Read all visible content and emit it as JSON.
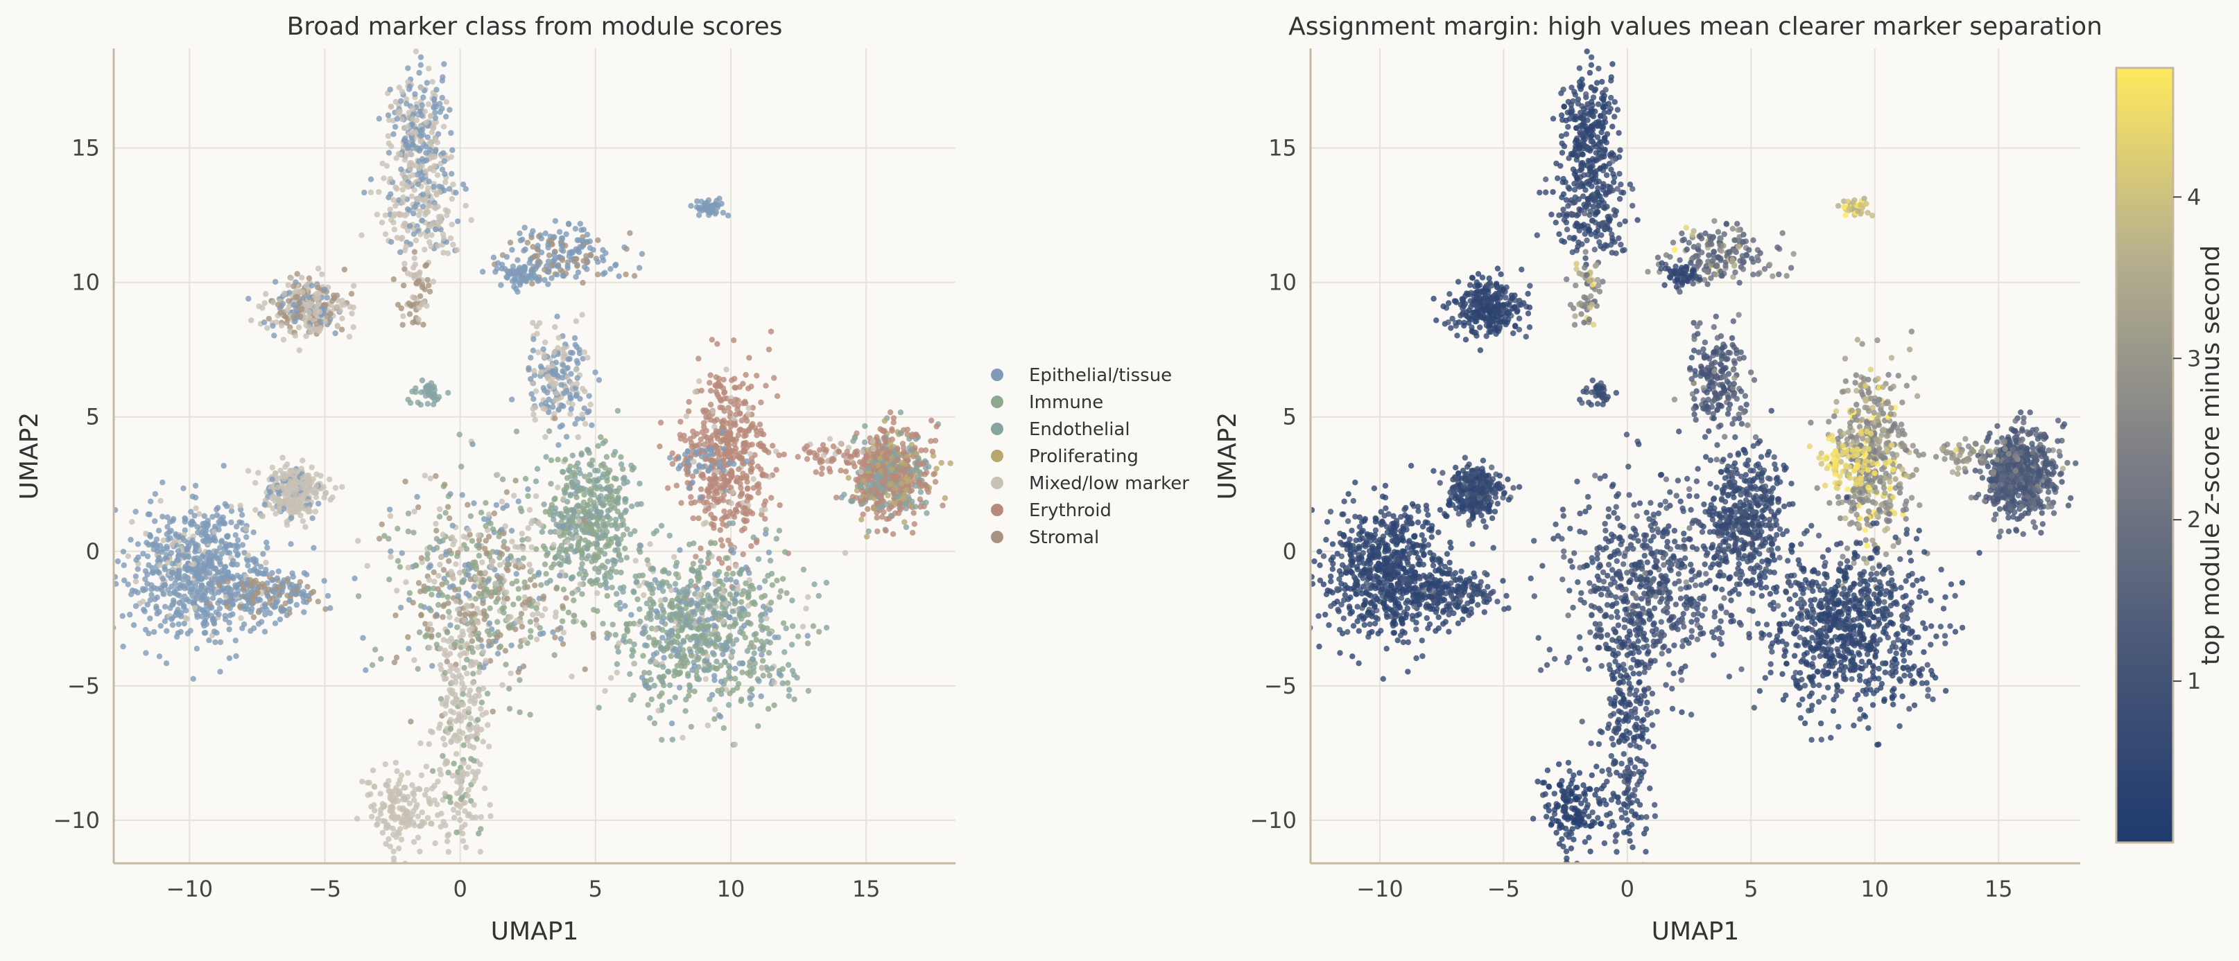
{
  "chart_data": [
    {
      "type": "scatter",
      "title": "Broad marker class from module scores",
      "xlabel": "UMAP1",
      "ylabel": "UMAP2",
      "xlim": [
        -12.8,
        18.3
      ],
      "ylim": [
        -11.6,
        18.7
      ],
      "xticks": [
        -10,
        -5,
        0,
        5,
        10,
        15
      ],
      "yticks": [
        -10,
        -5,
        0,
        5,
        10,
        15
      ],
      "xtick_labels": [
        "−10",
        "−5",
        "0",
        "5",
        "10",
        "15"
      ],
      "ytick_labels": [
        "−10",
        "−5",
        "0",
        "5",
        "10",
        "15"
      ],
      "grid": true,
      "legend_position": "right",
      "legend": [
        {
          "label": "Epithelial/tissue",
          "color": "#7f9bb8"
        },
        {
          "label": "Immune",
          "color": "#8fa88c"
        },
        {
          "label": "Endothelial",
          "color": "#86a4a2"
        },
        {
          "label": "Proliferating",
          "color": "#b8a870"
        },
        {
          "label": "Mixed/low marker",
          "color": "#c8c1b5"
        },
        {
          "label": "Erythroid",
          "color": "#b88a7a"
        },
        {
          "label": "Stromal",
          "color": "#a89480"
        }
      ],
      "clusters": [
        {
          "x": -9.6,
          "y": -0.8,
          "sx": 1.3,
          "sy": 1.2,
          "n": 700,
          "mix": [
            [
              "Epithelial/tissue",
              0.9
            ],
            [
              "Mixed/low marker",
              0.1
            ]
          ],
          "margin": [
            0.3,
            0.4
          ]
        },
        {
          "x": -6.2,
          "y": 2.2,
          "sx": 0.6,
          "sy": 0.5,
          "n": 300,
          "mix": [
            [
              "Mixed/low marker",
              0.85
            ],
            [
              "Epithelial/tissue",
              0.15
            ]
          ],
          "margin": [
            0.3,
            0.6
          ]
        },
        {
          "x": -5.6,
          "y": 9.1,
          "sx": 0.7,
          "sy": 0.5,
          "n": 300,
          "mix": [
            [
              "Mixed/low marker",
              0.5
            ],
            [
              "Stromal",
              0.3
            ],
            [
              "Epithelial/tissue",
              0.2
            ]
          ],
          "margin": [
            0.3,
            0.4
          ]
        },
        {
          "x": -1.6,
          "y": 15.5,
          "sx": 0.5,
          "sy": 1.2,
          "n": 260,
          "mix": [
            [
              "Epithelial/tissue",
              0.5
            ],
            [
              "Mixed/low marker",
              0.5
            ]
          ],
          "margin": [
            0.3,
            0.5
          ]
        },
        {
          "x": -1.3,
          "y": 12.6,
          "sx": 0.8,
          "sy": 0.9,
          "n": 200,
          "mix": [
            [
              "Mixed/low marker",
              0.7
            ],
            [
              "Epithelial/tissue",
              0.3
            ]
          ],
          "margin": [
            0.4,
            0.6
          ]
        },
        {
          "x": -1.6,
          "y": 9.6,
          "sx": 0.3,
          "sy": 0.6,
          "n": 60,
          "mix": [
            [
              "Stromal",
              0.6
            ],
            [
              "Mixed/low marker",
              0.4
            ]
          ],
          "margin": [
            2.0,
            1.5
          ]
        },
        {
          "x": 3.8,
          "y": 11.0,
          "sx": 1.1,
          "sy": 0.5,
          "n": 180,
          "mix": [
            [
              "Epithelial/tissue",
              0.7
            ],
            [
              "Stromal",
              0.3
            ]
          ],
          "margin": [
            1.2,
            1.5
          ]
        },
        {
          "x": 9.2,
          "y": 12.8,
          "sx": 0.3,
          "sy": 0.15,
          "n": 50,
          "mix": [
            [
              "Epithelial/tissue",
              1.0
            ]
          ],
          "margin": [
            3.5,
            1.0
          ]
        },
        {
          "x": 3.6,
          "y": 6.4,
          "sx": 0.6,
          "sy": 0.9,
          "n": 200,
          "mix": [
            [
              "Epithelial/tissue",
              0.6
            ],
            [
              "Mixed/low marker",
              0.4
            ]
          ],
          "margin": [
            0.8,
            0.9
          ]
        },
        {
          "x": 4.8,
          "y": 1.2,
          "sx": 0.8,
          "sy": 1.3,
          "n": 450,
          "mix": [
            [
              "Immune",
              0.5
            ],
            [
              "Endothelial",
              0.5
            ]
          ],
          "margin": [
            0.5,
            0.5
          ]
        },
        {
          "x": 0.8,
          "y": -1.4,
          "sx": 1.8,
          "sy": 1.8,
          "n": 600,
          "mix": [
            [
              "Immune",
              0.35
            ],
            [
              "Stromal",
              0.25
            ],
            [
              "Mixed/low marker",
              0.25
            ],
            [
              "Epithelial/tissue",
              0.15
            ]
          ],
          "margin": [
            0.5,
            0.7
          ]
        },
        {
          "x": 0.0,
          "y": -6.5,
          "sx": 0.5,
          "sy": 2.2,
          "n": 250,
          "mix": [
            [
              "Mixed/low marker",
              0.8
            ],
            [
              "Immune",
              0.2
            ]
          ],
          "margin": [
            0.4,
            0.4
          ]
        },
        {
          "x": -2.2,
          "y": -9.6,
          "sx": 0.6,
          "sy": 0.7,
          "n": 160,
          "mix": [
            [
              "Mixed/low marker",
              1.0
            ]
          ],
          "margin": [
            0.2,
            0.3
          ]
        },
        {
          "x": 9.8,
          "y": 3.4,
          "sx": 0.8,
          "sy": 1.6,
          "n": 480,
          "mix": [
            [
              "Erythroid",
              0.9
            ],
            [
              "Mixed/low marker",
              0.1
            ]
          ],
          "margin": [
            2.3,
            1.5
          ]
        },
        {
          "x": 15.8,
          "y": 2.9,
          "sx": 0.7,
          "sy": 0.8,
          "n": 700,
          "mix": [
            [
              "Erythroid",
              0.55
            ],
            [
              "Endothelial",
              0.3
            ],
            [
              "Proliferating",
              0.15
            ]
          ],
          "margin": [
            1.0,
            0.8
          ]
        },
        {
          "x": 9.0,
          "y": -3.0,
          "sx": 1.6,
          "sy": 1.5,
          "n": 800,
          "mix": [
            [
              "Immune",
              0.45
            ],
            [
              "Endothelial",
              0.3
            ],
            [
              "Epithelial/tissue",
              0.15
            ],
            [
              "Mixed/low marker",
              0.1
            ]
          ],
          "margin": [
            0.3,
            0.5
          ]
        },
        {
          "x": -7.0,
          "y": -1.6,
          "sx": 1.0,
          "sy": 0.4,
          "n": 150,
          "mix": [
            [
              "Epithelial/tissue",
              0.6
            ],
            [
              "Stromal",
              0.4
            ]
          ],
          "margin": [
            0.3,
            0.6
          ]
        },
        {
          "x": -1.2,
          "y": 5.9,
          "sx": 0.3,
          "sy": 0.2,
          "n": 40,
          "mix": [
            [
              "Endothelial",
              1.0
            ]
          ],
          "margin": [
            0.6,
            0.4
          ]
        },
        {
          "x": 2.2,
          "y": 10.3,
          "sx": 0.4,
          "sy": 0.2,
          "n": 60,
          "mix": [
            [
              "Epithelial/tissue",
              1.0
            ]
          ],
          "margin": [
            0.4,
            0.4
          ]
        },
        {
          "x": 13.6,
          "y": 3.6,
          "sx": 1.0,
          "sy": 0.3,
          "n": 60,
          "mix": [
            [
              "Erythroid",
              0.7
            ],
            [
              "Mixed/low marker",
              0.3
            ]
          ],
          "margin": [
            2.5,
            0.8
          ]
        },
        {
          "x": 8.8,
          "y": 3.3,
          "sx": 0.6,
          "sy": 0.5,
          "n": 70,
          "mix": [
            [
              "Epithelial/tissue",
              0.6
            ],
            [
              "Erythroid",
              0.4
            ]
          ],
          "margin": [
            4.3,
            0.4
          ]
        }
      ]
    },
    {
      "type": "scatter",
      "title": "Assignment margin: high values mean clearer marker separation",
      "xlabel": "UMAP1",
      "ylabel": "UMAP2",
      "xlim": [
        -12.8,
        18.3
      ],
      "ylim": [
        -11.6,
        18.7
      ],
      "xticks": [
        -10,
        -5,
        0,
        5,
        10,
        15
      ],
      "yticks": [
        -10,
        -5,
        0,
        5,
        10,
        15
      ],
      "xtick_labels": [
        "−10",
        "−5",
        "0",
        "5",
        "10",
        "15"
      ],
      "ytick_labels": [
        "−10",
        "−5",
        "0",
        "5",
        "10",
        "15"
      ],
      "grid": true,
      "colorbar": {
        "label": "top module z-score minus second",
        "range": [
          0.0,
          4.8
        ],
        "ticks": [
          1,
          2,
          3,
          4
        ],
        "tick_labels": [
          "1",
          "2",
          "3",
          "4"
        ],
        "colormap": "cividis",
        "stops": [
          "#1e3a6e",
          "#4a5878",
          "#7d7f86",
          "#b4ae8e",
          "#ffe95e"
        ]
      }
    }
  ]
}
